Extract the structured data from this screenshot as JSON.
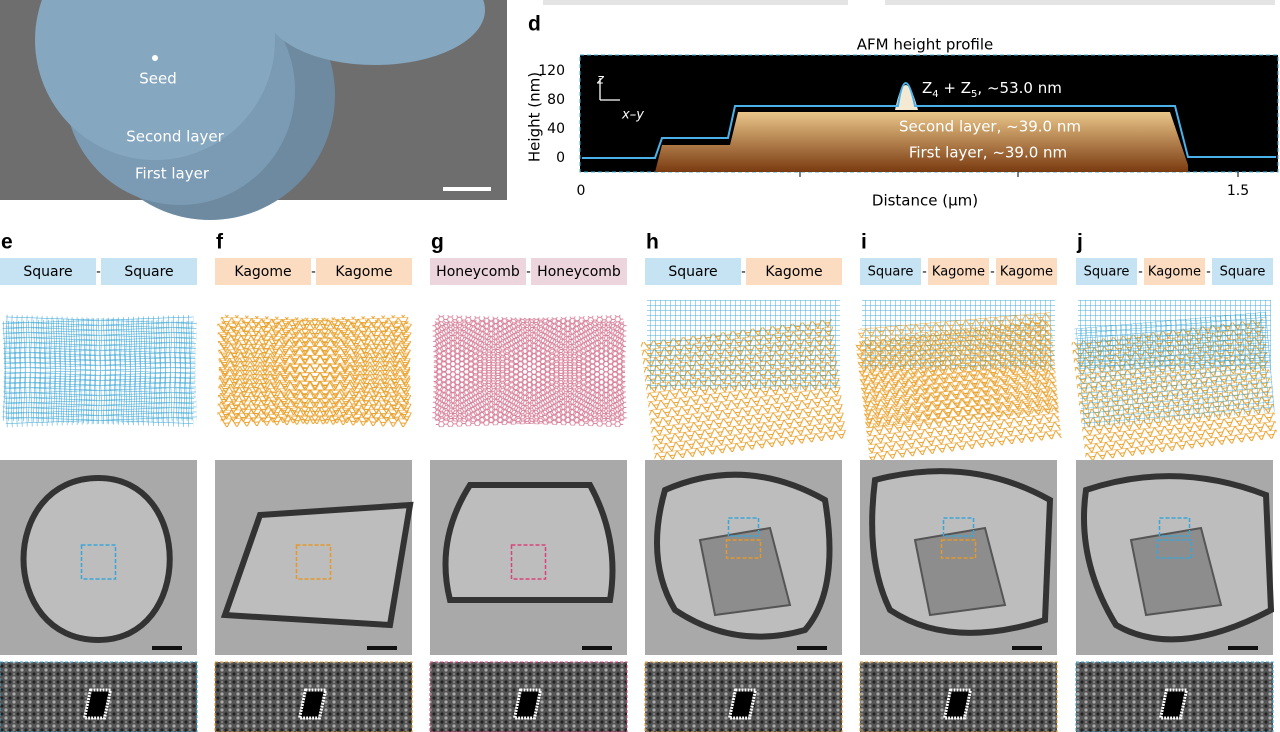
{
  "sem": {
    "seed": "Seed",
    "second": "Second layer",
    "first": "First layer"
  },
  "afm": {
    "label": "d",
    "title": "AFM height profile",
    "ylabel": "Height (nm)",
    "xlabel": "Distance (μm)",
    "yticks": [
      120,
      80,
      40,
      0
    ],
    "xticks": [
      0,
      1.5
    ],
    "z_axis": "z",
    "xy_axis": "x–y",
    "annotation_top": [
      "Z",
      "4",
      " + Z",
      "5",
      ", ~53.0 nm"
    ],
    "annotation_second": "Second layer, ~39.0 nm",
    "annotation_first": "First layer, ~39.0 nm"
  },
  "separator": "-",
  "panels": [
    {
      "label": "e",
      "boxes": [
        "Square",
        "Square"
      ]
    },
    {
      "label": "f",
      "boxes": [
        "Kagome",
        "Kagome"
      ]
    },
    {
      "label": "g",
      "boxes": [
        "Honeycomb",
        "Honeycomb"
      ]
    },
    {
      "label": "h",
      "boxes": [
        "Square",
        "Kagome"
      ]
    },
    {
      "label": "i",
      "boxes": [
        "Square",
        "Kagome",
        "Kagome"
      ]
    },
    {
      "label": "j",
      "boxes": [
        "Square",
        "Kagome",
        "Square"
      ]
    }
  ]
}
